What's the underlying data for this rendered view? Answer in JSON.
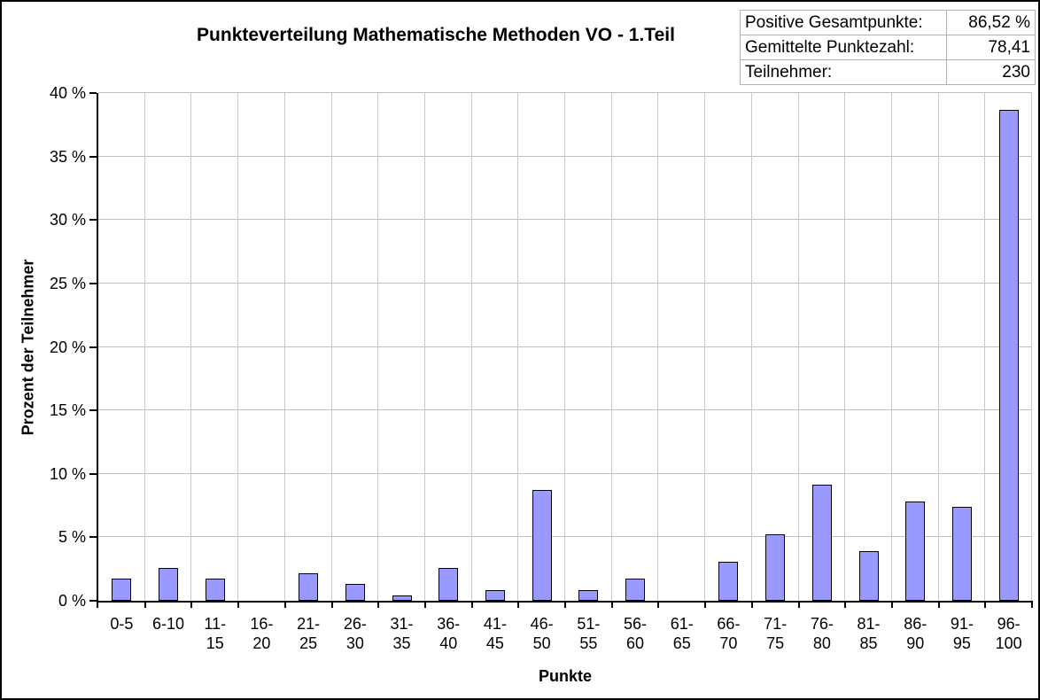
{
  "title": "Punkteverteilung Mathematische Methoden VO - 1.Teil",
  "stats_box": {
    "rows": [
      {
        "label": "Positive Gesamtpunkte:",
        "value": "86,52 %"
      },
      {
        "label": "Gemittelte Punktezahl:",
        "value": "78,41"
      },
      {
        "label": "Teilnehmer:",
        "value": "230"
      }
    ]
  },
  "chart_data": {
    "type": "bar",
    "title": "Punkteverteilung Mathematische Methoden VO - 1.Teil",
    "xlabel": "Punkte",
    "ylabel": "Prozent der Teilnehmer",
    "categories": [
      "0-5",
      "6-10",
      "11-15",
      "16-20",
      "21-25",
      "26-30",
      "31-35",
      "36-40",
      "41-45",
      "46-50",
      "51-55",
      "56-60",
      "61-65",
      "66-70",
      "71-75",
      "76-80",
      "81-85",
      "86-90",
      "91-95",
      "96-100"
    ],
    "category_labels": [
      "0-5",
      "6-10",
      "11-\n15",
      "16-\n20",
      "21-\n25",
      "26-\n30",
      "31-\n35",
      "36-\n40",
      "41-\n45",
      "46-\n50",
      "51-\n55",
      "56-\n60",
      "61-\n65",
      "66-\n70",
      "71-\n75",
      "76-\n80",
      "81-\n85",
      "86-\n90",
      "91-\n95",
      "96-\n100"
    ],
    "values": [
      1.74,
      2.61,
      1.74,
      0,
      2.17,
      1.3,
      0.43,
      2.61,
      0.87,
      8.7,
      0.87,
      1.74,
      0,
      3.04,
      5.22,
      9.13,
      3.91,
      7.83,
      7.39,
      38.7
    ],
    "ylim": [
      0,
      40
    ],
    "ytick_step": 5,
    "ytick_suffix": " %",
    "yticks": [
      "0 %",
      "5 %",
      "10 %",
      "15 %",
      "20 %",
      "25 %",
      "30 %",
      "35 %",
      "40 %"
    ],
    "grid": true,
    "legend": false,
    "colors": {
      "bar_fill": "#9999ff",
      "bar_border": "#000000",
      "gridline_h": "#bfbfbf",
      "gridline_v": "#c9c9c9",
      "axis": "#000000",
      "stats_border": "#b3b3b3"
    }
  }
}
